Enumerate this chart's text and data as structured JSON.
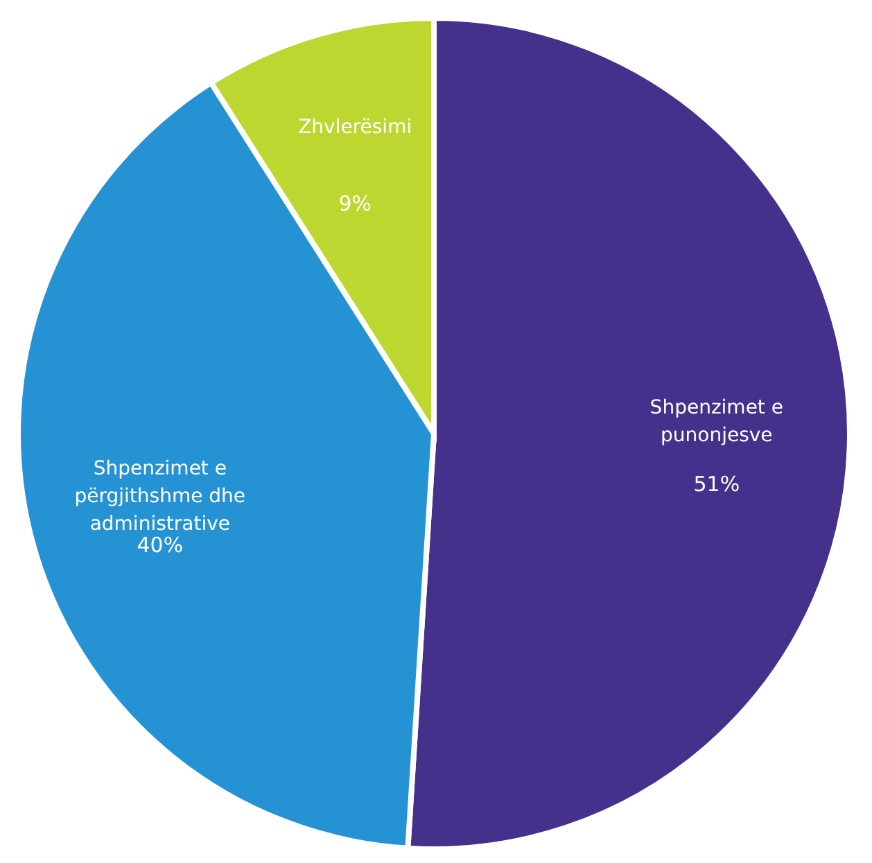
{
  "chart_data": {
    "type": "pie",
    "categories": [
      "Shpenzimet e punonjesve",
      "Shpenzimet e përgjithshme dhe administrative",
      "Zhvlerësimi"
    ],
    "values": [
      51,
      40,
      9
    ],
    "value_labels": [
      "51%",
      "40%",
      "9%"
    ],
    "colors": [
      "#45318c",
      "#2592d4",
      "#bed630"
    ],
    "legend": false
  }
}
